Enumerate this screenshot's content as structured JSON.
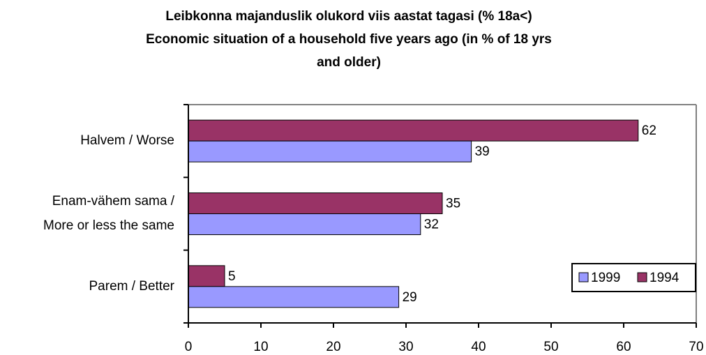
{
  "chart_data": {
    "type": "bar",
    "orientation": "horizontal",
    "title": [
      "Leibkonna majanduslik olukord viis aastat tagasi (% 18a<)",
      "Economic situation of a household five years ago (in % of 18 yrs",
      "and older)"
    ],
    "categories": [
      [
        "Halvem / Worse"
      ],
      [
        "Enam-vähem sama /",
        "More or less the same"
      ],
      [
        "Parem / Better"
      ]
    ],
    "series": [
      {
        "name": "1999",
        "color": "#9999ff",
        "values": [
          39,
          32,
          29
        ]
      },
      {
        "name": "1994",
        "color": "#993366",
        "values": [
          62,
          35,
          5
        ]
      }
    ],
    "xlim": [
      0,
      70
    ],
    "xticks": [
      0,
      10,
      20,
      30,
      40,
      50,
      60,
      70
    ],
    "legend": "right"
  }
}
